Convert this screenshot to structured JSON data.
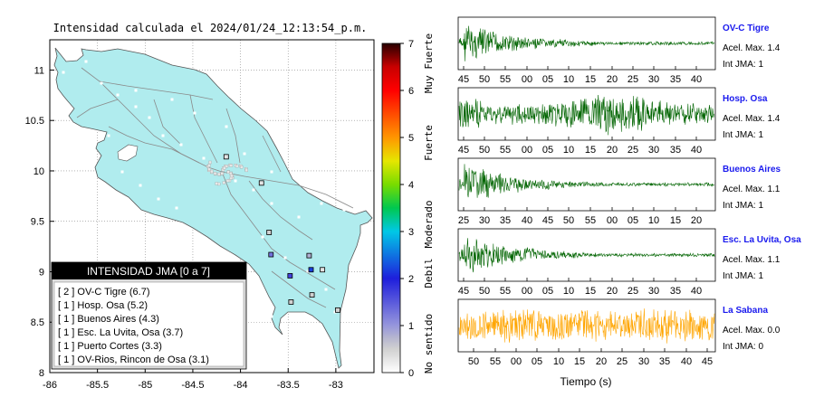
{
  "map": {
    "title": "Intensidad calculada el 2024/01/24_12:13:54_p.m.",
    "x_ticks": [
      "-86",
      "-85.5",
      "-85",
      "-84.5",
      "-84",
      "-83.5",
      "-83"
    ],
    "y_ticks": [
      "11",
      "10.5",
      "10",
      "9.5",
      "9",
      "8.5",
      "8"
    ],
    "land_color": "#b0ecee",
    "legend": {
      "title": "INTENSIDAD JMA [0 a 7]",
      "items": [
        "[ 2 ]  OV-C Tigre (6.7)",
        "[ 1 ]  Hosp. Osa (5.2)",
        "[ 1 ]  Buenos Aires (4.3)",
        "[ 1 ]  Esc. La Uvita, Osa (3.7)",
        "[ 1 ]  Puerto Cortes (3.3)",
        "[ 1 ]  OV-Rios, Rincon de Osa (3.1)"
      ]
    }
  },
  "colorbar": {
    "ticks": [
      "7",
      "6",
      "5",
      "4",
      "3",
      "2",
      "1",
      "0"
    ],
    "labels": [
      "Muy Fuerte",
      "Fuerte",
      "Moderado",
      "Debil",
      "No sentido"
    ]
  },
  "waveforms": [
    {
      "station": "OV-C Tigre",
      "acel": "Acel. Max. 1.4",
      "int": "Int JMA: 1",
      "color": "#006400",
      "ticks": [
        "45",
        "50",
        "55",
        "00",
        "05",
        "10",
        "15",
        "20",
        "25",
        "30",
        "35",
        "40"
      ],
      "envelope": "decay"
    },
    {
      "station": "Hosp. Osa",
      "acel": "Acel. Max. 1.4",
      "int": "Int JMA: 1",
      "color": "#006400",
      "ticks": [
        "45",
        "50",
        "55",
        "00",
        "05",
        "10",
        "15",
        "20",
        "25",
        "30",
        "35",
        "40"
      ],
      "envelope": "burst"
    },
    {
      "station": "Buenos Aires",
      "acel": "Acel. Max. 1.1",
      "int": "Int JMA: 1",
      "color": "#006400",
      "ticks": [
        "25",
        "30",
        "35",
        "40",
        "45",
        "50",
        "55",
        "00",
        "05",
        "10",
        "15",
        "20"
      ],
      "envelope": "decay"
    },
    {
      "station": "Esc. La Uvita, Osa",
      "acel": "Acel. Max. 1.1",
      "int": "Int JMA: 1",
      "color": "#006400",
      "ticks": [
        "45",
        "50",
        "55",
        "00",
        "05",
        "10",
        "15",
        "20",
        "25",
        "30",
        "35",
        "40"
      ],
      "envelope": "decay"
    },
    {
      "station": "La Sabana",
      "acel": "Acel. Max. 0.0",
      "int": "Int JMA: 0",
      "color": "#ffa500",
      "ticks": [
        "50",
        "55",
        "00",
        "05",
        "10",
        "15",
        "20",
        "25",
        "30",
        "35",
        "40",
        "45"
      ],
      "envelope": "noise"
    }
  ],
  "waveform_xlabel": "Tiempo (s)",
  "chart_data": {
    "type": "scatter",
    "title": "Intensidad calculada el 2024/01/24_12:13:54_p.m.",
    "xlim": [
      -86,
      -82.6
    ],
    "ylim": [
      8,
      11.3
    ],
    "stations_in_legend": [
      {
        "name": "OV-C Tigre",
        "count": 2,
        "value": 6.7
      },
      {
        "name": "Hosp. Osa",
        "count": 1,
        "value": 5.2
      },
      {
        "name": "Buenos Aires",
        "count": 1,
        "value": 4.3
      },
      {
        "name": "Esc. La Uvita, Osa",
        "count": 1,
        "value": 3.7
      },
      {
        "name": "Puerto Cortes",
        "count": 1,
        "value": 3.3
      },
      {
        "name": "OV-Rios, Rincon de Osa",
        "count": 1,
        "value": 3.1
      }
    ],
    "station_markers": [
      {
        "lon": -84.15,
        "lat": 10.14,
        "intensity": 0.3
      },
      {
        "lon": -83.78,
        "lat": 9.88,
        "intensity": 0.3
      },
      {
        "lon": -83.7,
        "lat": 9.39,
        "intensity": 0.5
      },
      {
        "lon": -83.68,
        "lat": 9.17,
        "intensity": 1.3
      },
      {
        "lon": -83.48,
        "lat": 8.96,
        "intensity": 1.7
      },
      {
        "lon": -83.28,
        "lat": 9.16,
        "intensity": 0.8
      },
      {
        "lon": -83.26,
        "lat": 9.02,
        "intensity": 2.2
      },
      {
        "lon": -83.14,
        "lat": 9.02,
        "intensity": 0.3
      },
      {
        "lon": -83.25,
        "lat": 8.77,
        "intensity": 0.5
      },
      {
        "lon": -83.47,
        "lat": 8.7,
        "intensity": 0.5
      },
      {
        "lon": -82.98,
        "lat": 8.62,
        "intensity": 0.5
      }
    ],
    "colorbar_range": [
      0,
      7
    ]
  }
}
